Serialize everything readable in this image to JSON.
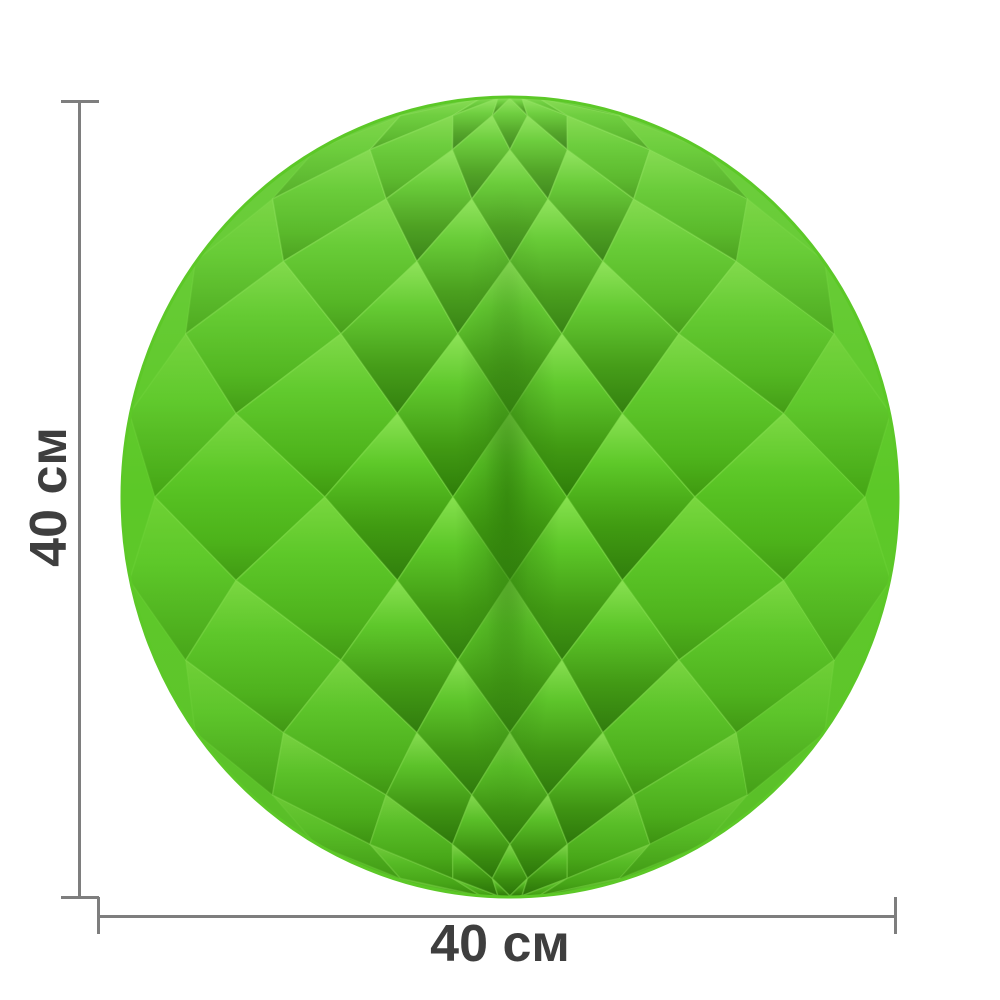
{
  "page": {
    "background": "#ffffff"
  },
  "dimensions": {
    "height": {
      "label": "40 см"
    },
    "width": {
      "label": "40 см"
    }
  },
  "annotations": {
    "line_color": "#7e7e7e",
    "text_color": "#3e3e3e"
  },
  "ball": {
    "colors": {
      "base": "#5cc827",
      "light": "#87e14f",
      "lightSoft": "#79d73f",
      "mid": "#4cb319",
      "dark": "#3f9a10",
      "deep": "#2e7d09",
      "softHi": "#6ed134",
      "softLo": "#45a615"
    }
  }
}
